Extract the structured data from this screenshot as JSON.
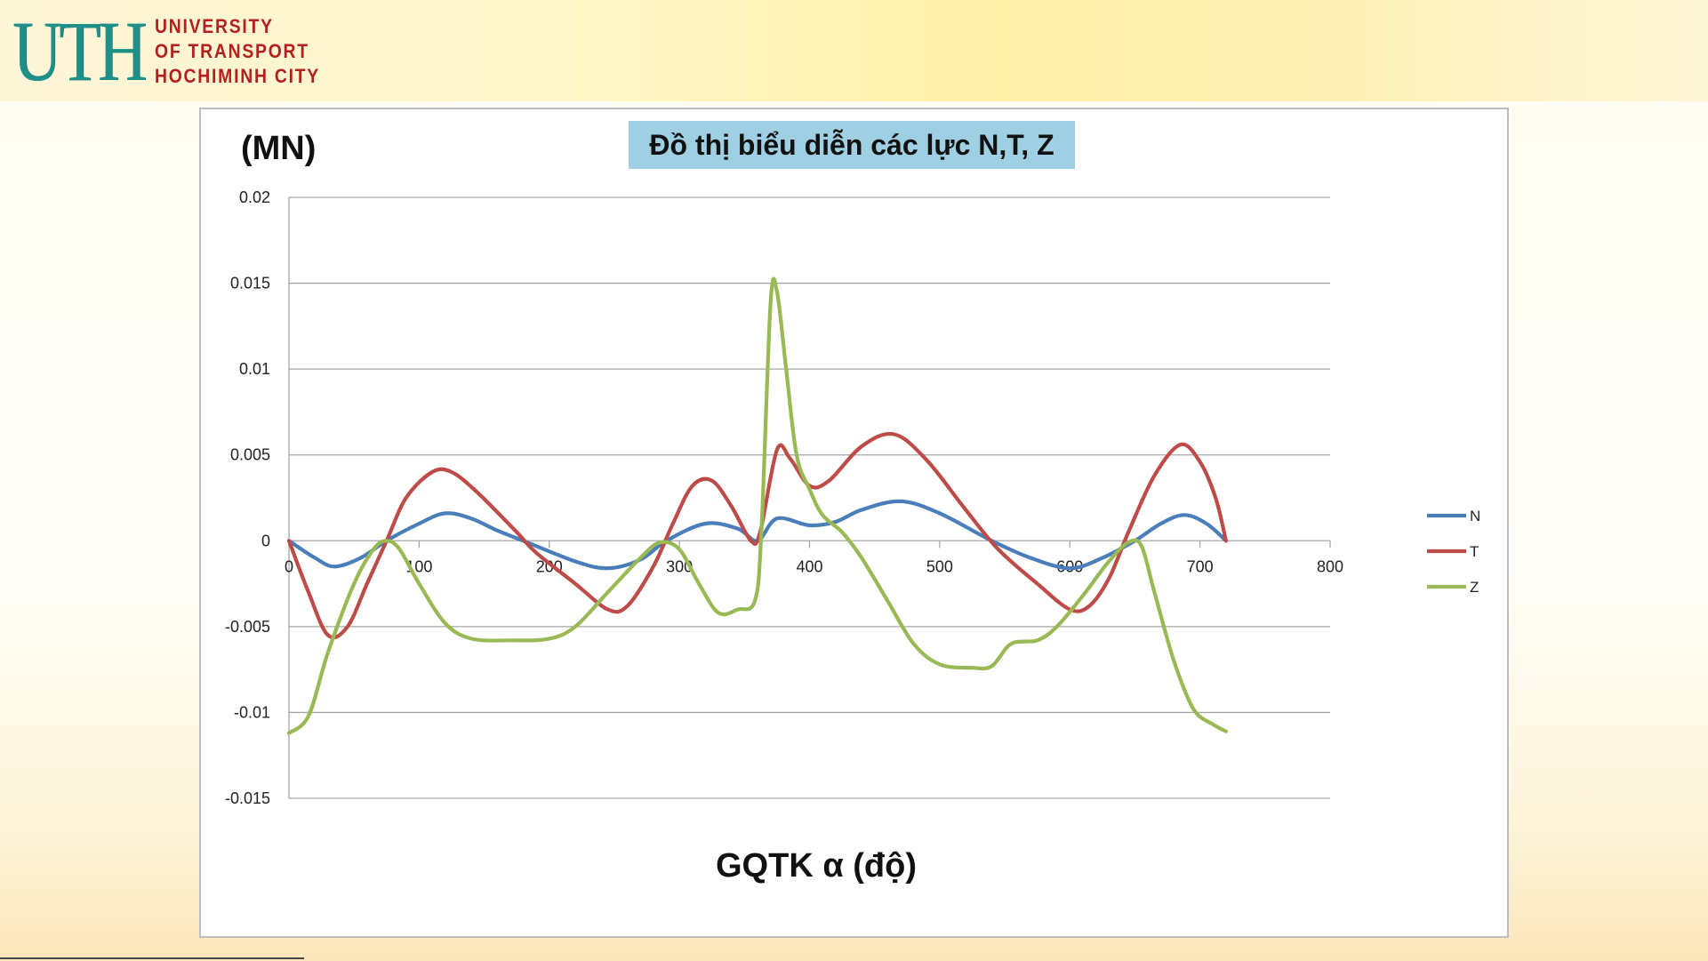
{
  "logo": {
    "mark": "UTH",
    "lines": [
      "UNIVERSITY",
      "OF TRANSPORT",
      "HOCHIMINH CITY"
    ]
  },
  "colors": {
    "N": "#4a7ebb",
    "T": "#be4b48",
    "Z": "#98b954",
    "grid": "#a6a6a6",
    "title_bg": "#9fcfe2"
  },
  "chart_data": {
    "type": "line",
    "title": "Đồ thị biểu diễn các lực N,T, Z",
    "ylabel": "(MN)",
    "xlabel": "GQTK α (độ)",
    "xlim": [
      0,
      800
    ],
    "ylim": [
      -0.015,
      0.02
    ],
    "x_ticks": [
      "0",
      "100",
      "200",
      "300",
      "400",
      "500",
      "600",
      "700",
      "800"
    ],
    "y_ticks": [
      "0.02",
      "0.015",
      "0.01",
      "0.005",
      "0",
      "-0.005",
      "-0.01",
      "-0.015"
    ],
    "grid": "horizontal",
    "legend": "right",
    "series": [
      {
        "name": "N",
        "points": [
          [
            0,
            0
          ],
          [
            20,
            -0.001
          ],
          [
            35,
            -0.0015
          ],
          [
            55,
            -0.001
          ],
          [
            75,
            0
          ],
          [
            100,
            0.001
          ],
          [
            120,
            0.0016
          ],
          [
            140,
            0.0013
          ],
          [
            160,
            0.0006
          ],
          [
            180,
            0
          ],
          [
            220,
            -0.0012
          ],
          [
            245,
            -0.0016
          ],
          [
            270,
            -0.0011
          ],
          [
            290,
            0
          ],
          [
            320,
            0.001
          ],
          [
            345,
            0.0007
          ],
          [
            360,
            0
          ],
          [
            375,
            0.0013
          ],
          [
            400,
            0.0009
          ],
          [
            420,
            0.0011
          ],
          [
            440,
            0.0018
          ],
          [
            470,
            0.0023
          ],
          [
            500,
            0.0016
          ],
          [
            540,
            0
          ],
          [
            570,
            -0.001
          ],
          [
            600,
            -0.0016
          ],
          [
            625,
            -0.001
          ],
          [
            650,
            0
          ],
          [
            670,
            0.001
          ],
          [
            688,
            0.0015
          ],
          [
            705,
            0.001
          ],
          [
            720,
            0
          ]
        ]
      },
      {
        "name": "T",
        "points": [
          [
            0,
            0
          ],
          [
            15,
            -0.003
          ],
          [
            30,
            -0.0055
          ],
          [
            45,
            -0.005
          ],
          [
            60,
            -0.0025
          ],
          [
            75,
            0
          ],
          [
            90,
            0.0025
          ],
          [
            110,
            0.004
          ],
          [
            125,
            0.004
          ],
          [
            145,
            0.0028
          ],
          [
            175,
            0.0005
          ],
          [
            190,
            -0.0007
          ],
          [
            220,
            -0.0025
          ],
          [
            245,
            -0.004
          ],
          [
            260,
            -0.0038
          ],
          [
            280,
            -0.0015
          ],
          [
            295,
            0.001
          ],
          [
            310,
            0.0032
          ],
          [
            325,
            0.0035
          ],
          [
            340,
            0.002
          ],
          [
            355,
            0
          ],
          [
            362,
            0.0005
          ],
          [
            375,
            0.0053
          ],
          [
            385,
            0.0048
          ],
          [
            400,
            0.0032
          ],
          [
            415,
            0.0035
          ],
          [
            440,
            0.0055
          ],
          [
            465,
            0.0062
          ],
          [
            490,
            0.0047
          ],
          [
            520,
            0.0018
          ],
          [
            545,
            -0.0005
          ],
          [
            575,
            -0.0025
          ],
          [
            600,
            -0.004
          ],
          [
            615,
            -0.0038
          ],
          [
            630,
            -0.0022
          ],
          [
            645,
            0.0005
          ],
          [
            665,
            0.0038
          ],
          [
            685,
            0.0056
          ],
          [
            700,
            0.0046
          ],
          [
            712,
            0.0025
          ],
          [
            720,
            0
          ]
        ]
      },
      {
        "name": "Z",
        "points": [
          [
            0,
            -0.0112
          ],
          [
            15,
            -0.0102
          ],
          [
            30,
            -0.0065
          ],
          [
            50,
            -0.0025
          ],
          [
            65,
            -0.0005
          ],
          [
            75,
            0
          ],
          [
            85,
            -0.0005
          ],
          [
            100,
            -0.0025
          ],
          [
            120,
            -0.0048
          ],
          [
            140,
            -0.0057
          ],
          [
            170,
            -0.0058
          ],
          [
            200,
            -0.0057
          ],
          [
            220,
            -0.005
          ],
          [
            245,
            -0.003
          ],
          [
            270,
            -0.001
          ],
          [
            285,
            -0.0001
          ],
          [
            300,
            -0.0005
          ],
          [
            315,
            -0.0025
          ],
          [
            330,
            -0.0042
          ],
          [
            345,
            -0.004
          ],
          [
            358,
            -0.0035
          ],
          [
            363,
            0.0005
          ],
          [
            370,
            0.0138
          ],
          [
            375,
            0.0145
          ],
          [
            382,
            0.01
          ],
          [
            390,
            0.005
          ],
          [
            400,
            0.003
          ],
          [
            410,
            0.0015
          ],
          [
            425,
            0.0005
          ],
          [
            440,
            -0.001
          ],
          [
            460,
            -0.0035
          ],
          [
            480,
            -0.006
          ],
          [
            500,
            -0.0072
          ],
          [
            525,
            -0.0074
          ],
          [
            540,
            -0.0073
          ],
          [
            555,
            -0.006
          ],
          [
            575,
            -0.0058
          ],
          [
            590,
            -0.005
          ],
          [
            610,
            -0.0032
          ],
          [
            630,
            -0.0012
          ],
          [
            645,
            -0.0001
          ],
          [
            655,
            -0.0003
          ],
          [
            665,
            -0.003
          ],
          [
            680,
            -0.007
          ],
          [
            695,
            -0.0098
          ],
          [
            710,
            -0.0107
          ],
          [
            720,
            -0.0111
          ]
        ]
      }
    ]
  }
}
